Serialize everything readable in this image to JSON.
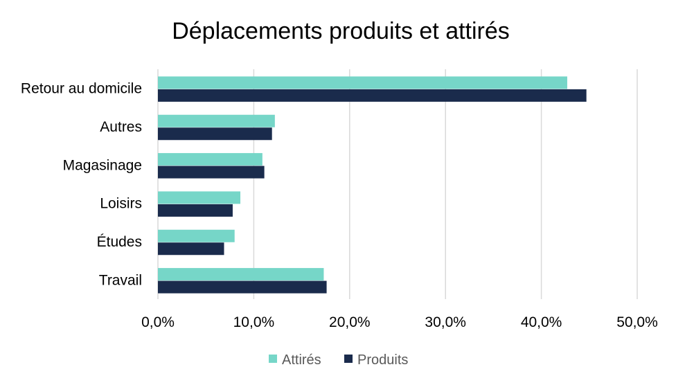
{
  "chart_data": {
    "type": "bar",
    "orientation": "horizontal",
    "title": "Déplacements produits et attirés",
    "xlabel": "",
    "ylabel": "",
    "categories": [
      "Retour au domicile",
      "Autres",
      "Magasinage",
      "Loisirs",
      "Études",
      "Travail"
    ],
    "series": [
      {
        "name": "Attirés",
        "color": "#76D6C8",
        "values": [
          42.7,
          12.2,
          10.9,
          8.6,
          8.0,
          17.3
        ]
      },
      {
        "name": "Produits",
        "color": "#1A2B4C",
        "values": [
          44.7,
          11.9,
          11.1,
          7.8,
          6.9,
          17.6
        ]
      }
    ],
    "xlim": [
      0,
      50
    ],
    "xticks": [
      0,
      10,
      20,
      30,
      40,
      50
    ],
    "xtick_labels": [
      "0,0%",
      "10,0%",
      "20,0%",
      "30,0%",
      "40,0%",
      "50,0%"
    ],
    "grid": "vertical",
    "legend": "bottom"
  }
}
